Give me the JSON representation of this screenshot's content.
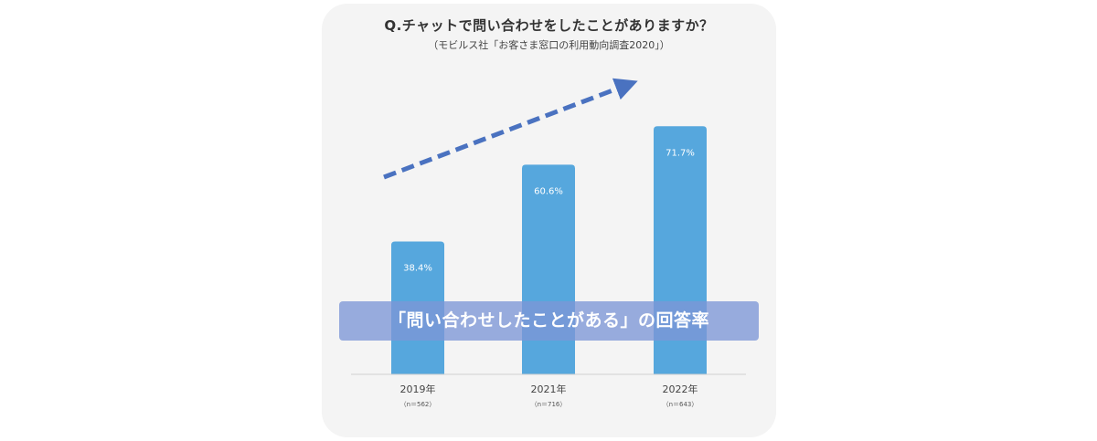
{
  "title": "Q.チャットで問い合わせをしたことがありますか？",
  "subtitle": "（モビルス社「お客さま窓口の利用動向調査2020」）",
  "banner": "「問い合わせしたことがある」の回答率",
  "colors": {
    "bar": "#56a7dd",
    "arrow": "#4a72c0",
    "banner": "#7c96d6",
    "card": "#f4f4f4"
  },
  "chart_data": {
    "type": "bar",
    "categories": [
      "2019年",
      "2021年",
      "2022年"
    ],
    "sample_sizes": [
      "（n＝562）",
      "（n＝716）",
      "（n＝643）"
    ],
    "values": [
      38.4,
      60.6,
      71.7
    ],
    "value_labels": [
      "38.4%",
      "60.6%",
      "71.7%"
    ],
    "ylim": [
      0,
      100
    ],
    "grid": false,
    "trend_arrow": "rising"
  }
}
